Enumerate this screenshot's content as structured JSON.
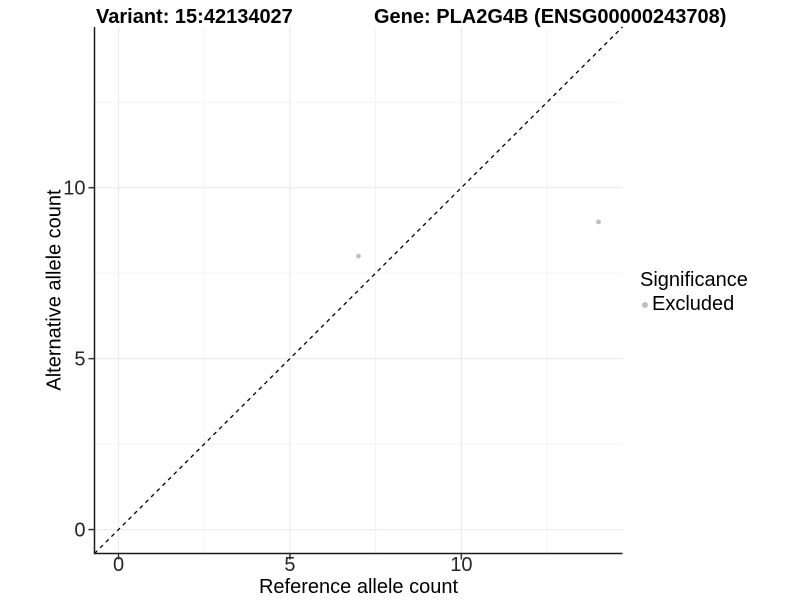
{
  "chart_data": {
    "type": "scatter",
    "title_left": "Variant: 15:42134027",
    "title_right": "Gene: PLA2G4B (ENSG00000243708)",
    "xlabel": "Reference allele count",
    "ylabel": "Alternative allele count",
    "xlim": [
      -0.7,
      14.7
    ],
    "ylim": [
      -0.7,
      14.7
    ],
    "x_ticks": [
      0,
      5,
      10
    ],
    "y_ticks": [
      0,
      5,
      10
    ],
    "x_minor_ticks": [
      2.5,
      7.5,
      12.5
    ],
    "y_minor_ticks": [
      2.5,
      7.5,
      12.5
    ],
    "grid": true,
    "identity_line": {
      "equation": "y = x",
      "style": "dashed",
      "color": "#000000"
    },
    "series": [
      {
        "name": "Excluded",
        "color": "#bfbfbf",
        "points": [
          [
            7,
            8
          ],
          [
            14,
            9
          ]
        ]
      }
    ],
    "legend": {
      "title": "Significance",
      "position": "right",
      "items": [
        {
          "label": "Excluded",
          "color": "#bfbfbf",
          "marker": "circle"
        }
      ]
    },
    "colors": {
      "background": "#ffffff",
      "grid_major": "#ebebeb",
      "grid_minor": "#f3f3f3",
      "axis_line": "#1a1a1a",
      "tick_mark": "#333333",
      "tick_label": "#262626",
      "text": "#000000"
    }
  }
}
